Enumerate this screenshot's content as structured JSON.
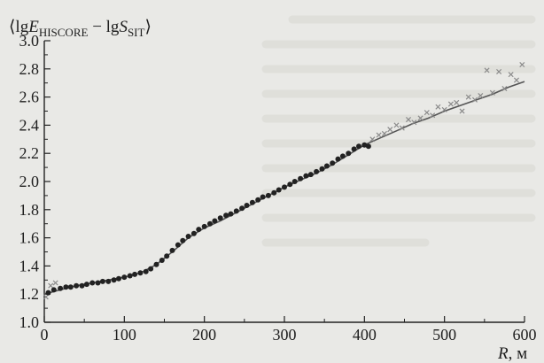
{
  "chart_data": {
    "type": "scatter",
    "title": "",
    "ylabel": {
      "open": "⟨lg",
      "e_symbol": "E",
      "e_subscript": "HISCORE",
      "minus": " − lg",
      "s_symbol": "S",
      "s_subscript": "SIT",
      "close": "⟩"
    },
    "xlabel": {
      "symbol": "R",
      "unit": ", м"
    },
    "xlim": [
      0,
      600
    ],
    "ylim": [
      1.0,
      3.0
    ],
    "xticks": [
      "0",
      "100",
      "200",
      "300",
      "400",
      "500",
      "600"
    ],
    "yticks": [
      "1.0",
      "1.2",
      "1.4",
      "1.6",
      "1.8",
      "2.0",
      "2.2",
      "2.4",
      "2.6",
      "2.8",
      "3.0"
    ],
    "grid": false,
    "series": [
      {
        "marker": "filled-circle",
        "color": "#222222",
        "x": [
          5,
          12,
          20,
          27,
          33,
          40,
          47,
          53,
          60,
          67,
          73,
          80,
          87,
          93,
          100,
          107,
          113,
          120,
          127,
          133,
          140,
          147,
          153,
          160,
          167,
          173,
          180,
          187,
          193,
          200,
          207,
          213,
          220,
          227,
          233,
          240,
          247,
          253,
          260,
          267,
          273,
          280,
          287,
          293,
          300,
          307,
          313,
          320,
          327,
          333,
          340,
          347,
          353,
          360,
          367,
          373,
          380,
          387,
          393,
          400,
          405
        ],
        "y": [
          1.21,
          1.23,
          1.24,
          1.25,
          1.25,
          1.26,
          1.26,
          1.27,
          1.28,
          1.28,
          1.29,
          1.29,
          1.3,
          1.31,
          1.32,
          1.33,
          1.34,
          1.35,
          1.36,
          1.38,
          1.41,
          1.44,
          1.47,
          1.51,
          1.55,
          1.58,
          1.61,
          1.63,
          1.66,
          1.68,
          1.7,
          1.72,
          1.74,
          1.76,
          1.77,
          1.79,
          1.81,
          1.83,
          1.85,
          1.87,
          1.89,
          1.9,
          1.92,
          1.94,
          1.96,
          1.98,
          2.0,
          2.02,
          2.04,
          2.05,
          2.07,
          2.09,
          2.11,
          2.13,
          2.16,
          2.18,
          2.2,
          2.23,
          2.25,
          2.26,
          2.25
        ]
      },
      {
        "marker": "cross",
        "color": "#8a8a8a",
        "x": [
          2,
          8,
          14,
          410,
          418,
          425,
          432,
          440,
          447,
          455,
          462,
          470,
          478,
          485,
          492,
          500,
          508,
          515,
          522,
          530,
          538,
          545,
          553,
          560,
          568,
          575,
          583,
          590,
          597
        ],
        "y": [
          1.18,
          1.26,
          1.28,
          2.3,
          2.33,
          2.34,
          2.37,
          2.4,
          2.38,
          2.44,
          2.42,
          2.45,
          2.49,
          2.47,
          2.53,
          2.51,
          2.55,
          2.56,
          2.5,
          2.6,
          2.58,
          2.61,
          2.79,
          2.63,
          2.78,
          2.66,
          2.76,
          2.72,
          2.83
        ]
      },
      {
        "marker": "line",
        "color": "#555555",
        "x": [
          0,
          20,
          40,
          60,
          80,
          100,
          120,
          140,
          160,
          180,
          200,
          220,
          240,
          260,
          280,
          300,
          320,
          340,
          360,
          380,
          400,
          420,
          440,
          460,
          480,
          500,
          520,
          540,
          560,
          580,
          600
        ],
        "y": [
          1.2,
          1.23,
          1.26,
          1.28,
          1.3,
          1.32,
          1.35,
          1.41,
          1.5,
          1.6,
          1.67,
          1.72,
          1.78,
          1.84,
          1.9,
          1.96,
          2.01,
          2.06,
          2.12,
          2.19,
          2.26,
          2.31,
          2.36,
          2.41,
          2.45,
          2.5,
          2.54,
          2.58,
          2.62,
          2.67,
          2.71
        ]
      }
    ]
  }
}
